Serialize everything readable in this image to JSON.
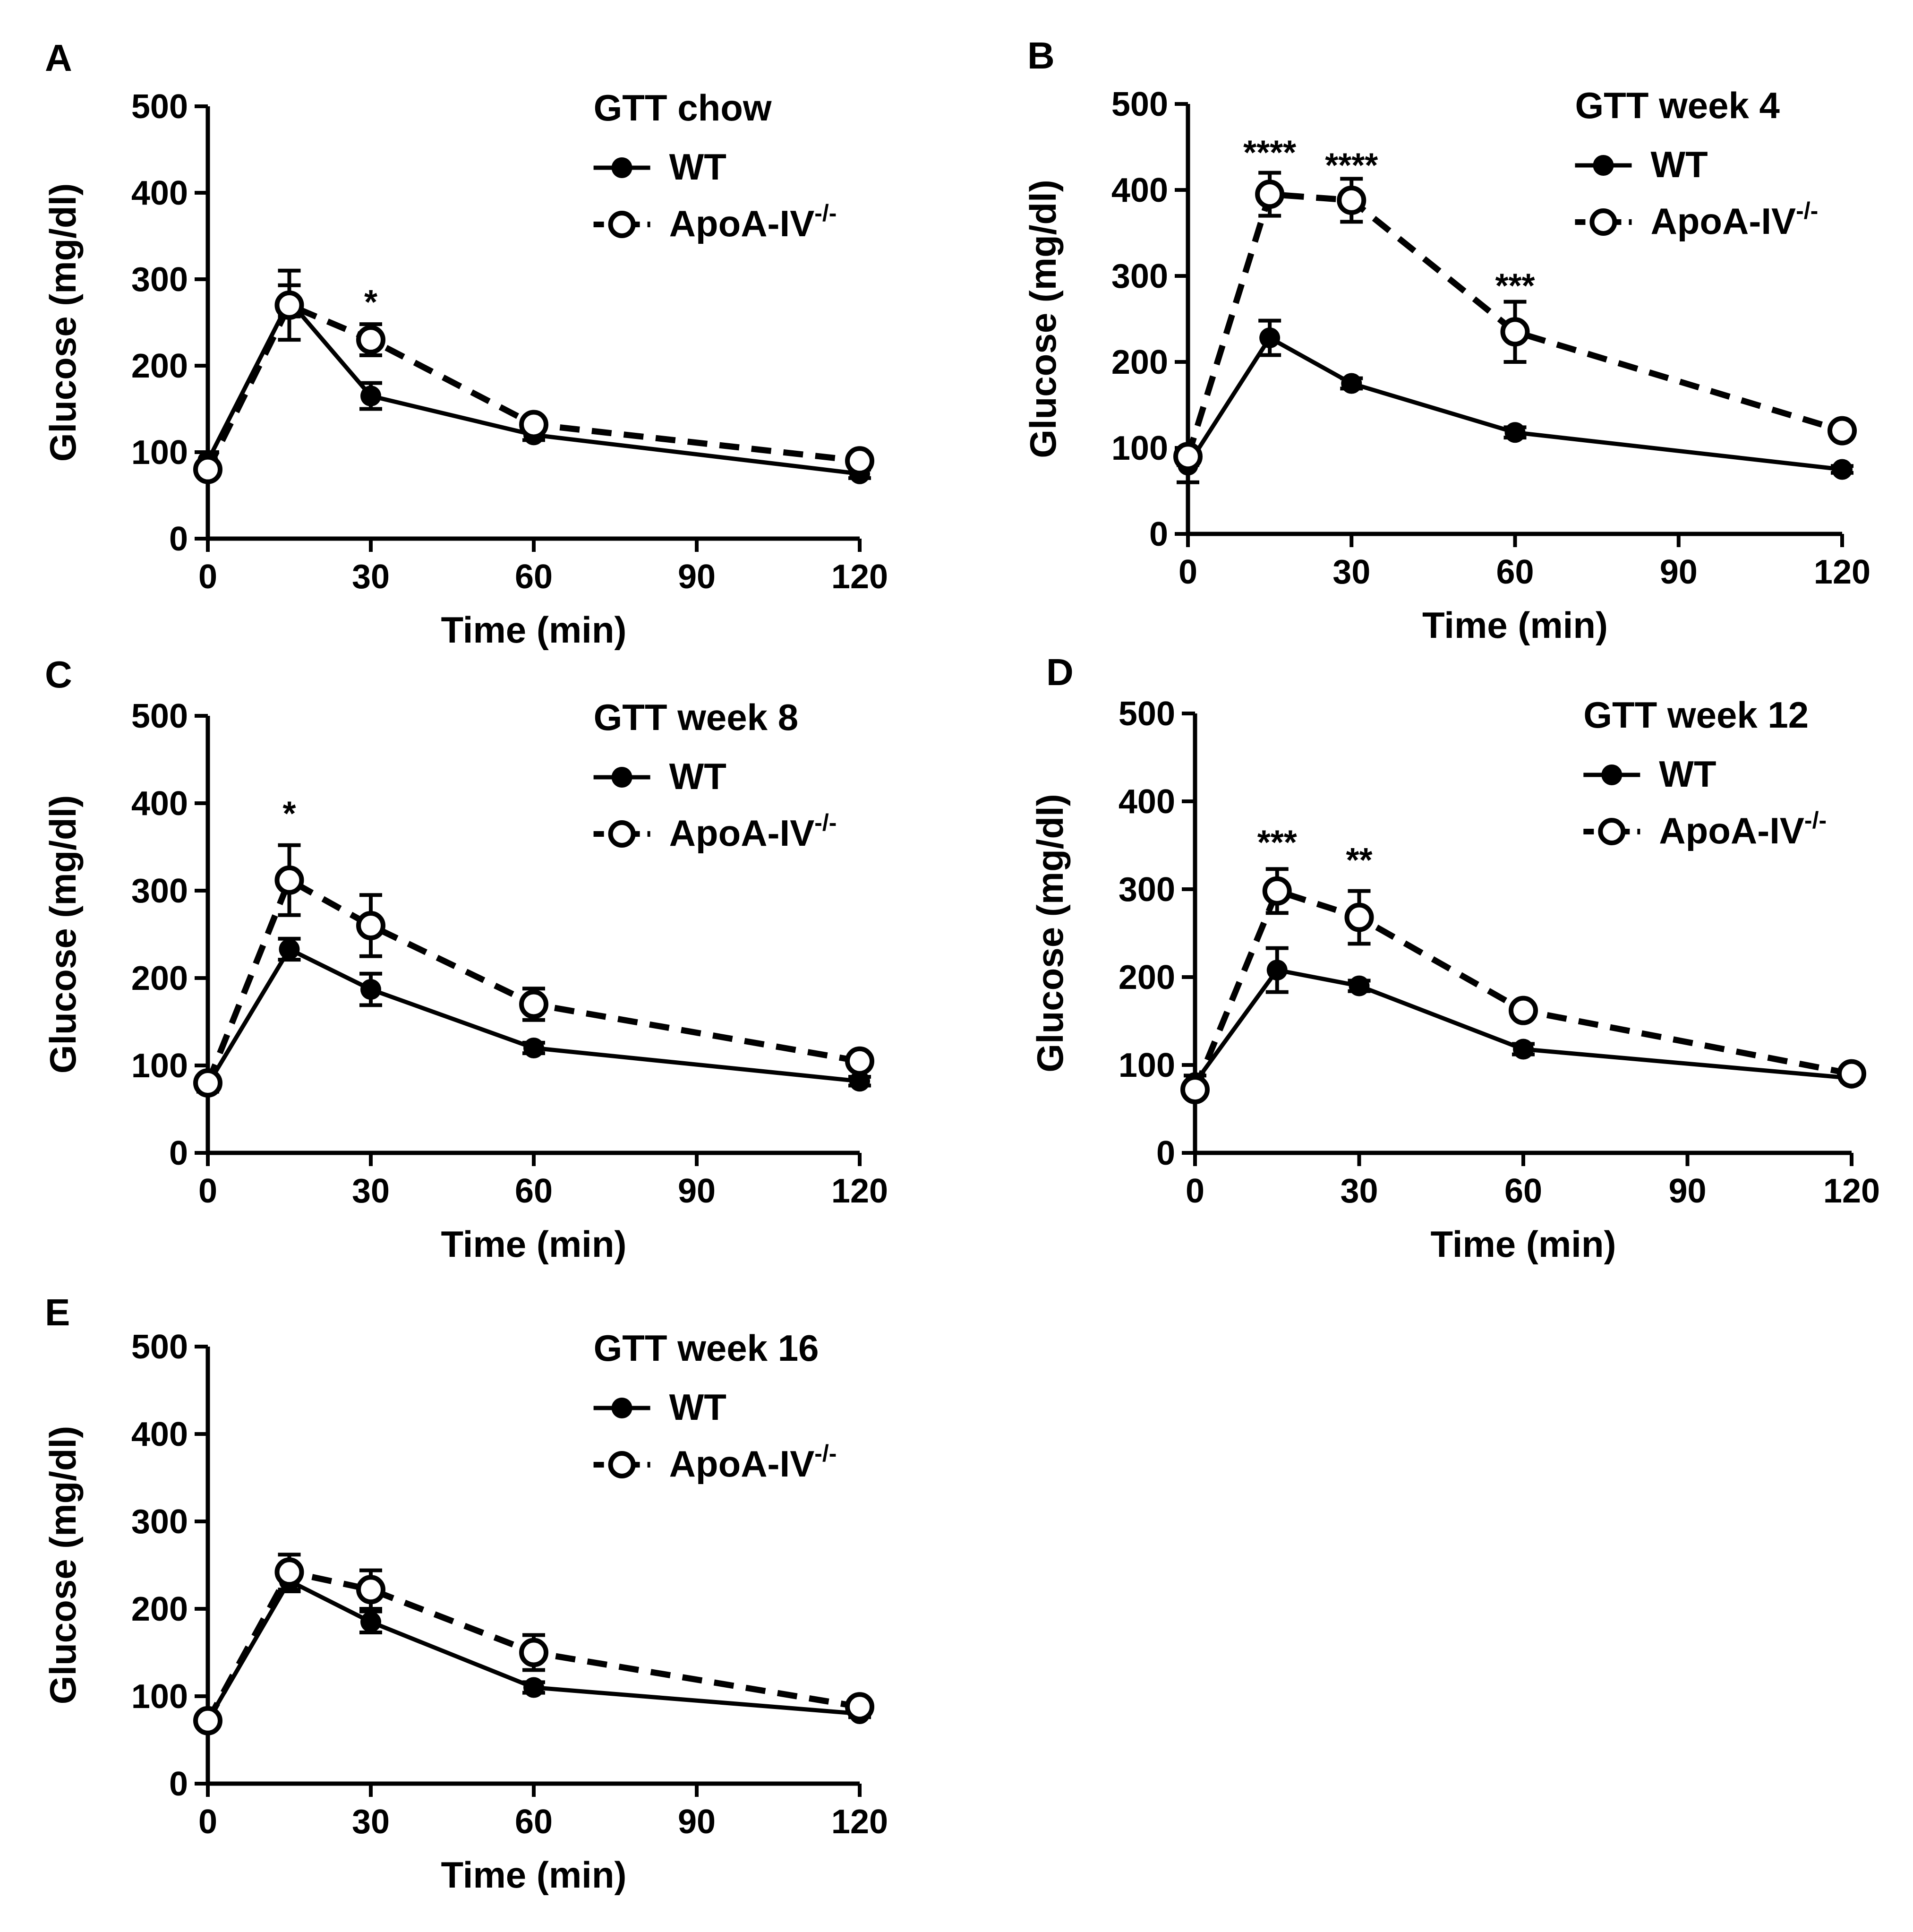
{
  "chart_data": [
    {
      "type": "line",
      "panel_label": "A",
      "title": "GTT chow",
      "xlabel": "Time (min)",
      "ylabel": "Glucose (mg/dl)",
      "xlim": [
        0,
        120
      ],
      "ylim": [
        0,
        500
      ],
      "xticks": [
        0,
        30,
        60,
        90,
        120
      ],
      "yticks": [
        0,
        100,
        200,
        300,
        400,
        500
      ],
      "x": [
        0,
        15,
        30,
        60,
        120
      ],
      "series": [
        {
          "name": "WT",
          "marker": "filled",
          "linestyle": "solid",
          "values": [
            90,
            275,
            165,
            120,
            75
          ],
          "errors": [
            10,
            18,
            15,
            6,
            5
          ]
        },
        {
          "name": "ApoA-IV",
          "name_superscript": "-/-",
          "marker": "open",
          "linestyle": "dashed",
          "values": [
            80,
            270,
            230,
            132,
            90
          ],
          "errors": [
            8,
            40,
            18,
            8,
            6
          ]
        }
      ],
      "annotations": [
        {
          "x": 30,
          "y": 260,
          "text": "*"
        }
      ]
    },
    {
      "type": "line",
      "panel_label": "B",
      "title": "GTT week 4",
      "xlabel": "Time (min)",
      "ylabel": "Glucose (mg/dl)",
      "xlim": [
        0,
        120
      ],
      "ylim": [
        0,
        500
      ],
      "xticks": [
        0,
        30,
        60,
        90,
        120
      ],
      "yticks": [
        0,
        100,
        200,
        300,
        400,
        500
      ],
      "x": [
        0,
        15,
        30,
        60,
        120
      ],
      "series": [
        {
          "name": "WT",
          "marker": "filled",
          "linestyle": "solid",
          "values": [
            80,
            228,
            175,
            118,
            75
          ],
          "errors": [
            20,
            20,
            6,
            6,
            4
          ]
        },
        {
          "name": "ApoA-IV",
          "name_superscript": "-/-",
          "marker": "open",
          "linestyle": "dashed",
          "values": [
            90,
            395,
            388,
            235,
            120
          ],
          "errors": [
            10,
            25,
            25,
            35,
            8
          ]
        }
      ],
      "annotations": [
        {
          "x": 15,
          "y": 430,
          "text": "****"
        },
        {
          "x": 30,
          "y": 415,
          "text": "****"
        },
        {
          "x": 60,
          "y": 275,
          "text": "***"
        }
      ]
    },
    {
      "type": "line",
      "panel_label": "C",
      "title": "GTT week 8",
      "xlabel": "Time (min)",
      "ylabel": "Glucose (mg/dl)",
      "xlim": [
        0,
        120
      ],
      "ylim": [
        0,
        500
      ],
      "xticks": [
        0,
        30,
        60,
        90,
        120
      ],
      "yticks": [
        0,
        100,
        200,
        300,
        400,
        500
      ],
      "x": [
        0,
        15,
        30,
        60,
        120
      ],
      "series": [
        {
          "name": "WT",
          "marker": "filled",
          "linestyle": "solid",
          "values": [
            78,
            233,
            187,
            120,
            82
          ],
          "errors": [
            8,
            12,
            18,
            6,
            5
          ]
        },
        {
          "name": "ApoA-IV",
          "name_superscript": "-/-",
          "marker": "open",
          "linestyle": "dashed",
          "values": [
            80,
            312,
            260,
            170,
            105
          ],
          "errors": [
            8,
            40,
            35,
            18,
            8
          ]
        }
      ],
      "annotations": [
        {
          "x": 15,
          "y": 375,
          "text": "*"
        }
      ]
    },
    {
      "type": "line",
      "panel_label": "D",
      "title": "GTT week 12",
      "xlabel": "Time (min)",
      "ylabel": "Glucose (mg/dl)",
      "xlim": [
        0,
        120
      ],
      "ylim": [
        0,
        500
      ],
      "xticks": [
        0,
        30,
        60,
        90,
        120
      ],
      "yticks": [
        0,
        100,
        200,
        300,
        400,
        500
      ],
      "x": [
        0,
        15,
        30,
        60,
        120
      ],
      "series": [
        {
          "name": "WT",
          "marker": "filled",
          "linestyle": "solid",
          "values": [
            80,
            208,
            190,
            118,
            85
          ],
          "errors": [
            8,
            25,
            6,
            6,
            4
          ]
        },
        {
          "name": "ApoA-IV",
          "name_superscript": "-/-",
          "marker": "open",
          "linestyle": "dashed",
          "values": [
            72,
            298,
            268,
            162,
            90
          ],
          "errors": [
            6,
            25,
            30,
            6,
            5
          ]
        }
      ],
      "annotations": [
        {
          "x": 15,
          "y": 340,
          "text": "***"
        },
        {
          "x": 30,
          "y": 320,
          "text": "**"
        }
      ]
    },
    {
      "type": "line",
      "panel_label": "E",
      "title": "GTT week 16",
      "xlabel": "Time (min)",
      "ylabel": "Glucose (mg/dl)",
      "xlim": [
        0,
        120
      ],
      "ylim": [
        0,
        500
      ],
      "xticks": [
        0,
        30,
        60,
        90,
        120
      ],
      "yticks": [
        0,
        100,
        200,
        300,
        400,
        500
      ],
      "x": [
        0,
        15,
        30,
        60,
        120
      ],
      "series": [
        {
          "name": "WT",
          "marker": "filled",
          "linestyle": "solid",
          "values": [
            72,
            232,
            185,
            110,
            80
          ],
          "errors": [
            6,
            12,
            12,
            6,
            4
          ]
        },
        {
          "name": "ApoA-IV",
          "name_superscript": "-/-",
          "marker": "open",
          "linestyle": "dashed",
          "values": [
            72,
            242,
            222,
            150,
            88
          ],
          "errors": [
            6,
            20,
            22,
            20,
            6
          ]
        }
      ],
      "annotations": []
    }
  ]
}
